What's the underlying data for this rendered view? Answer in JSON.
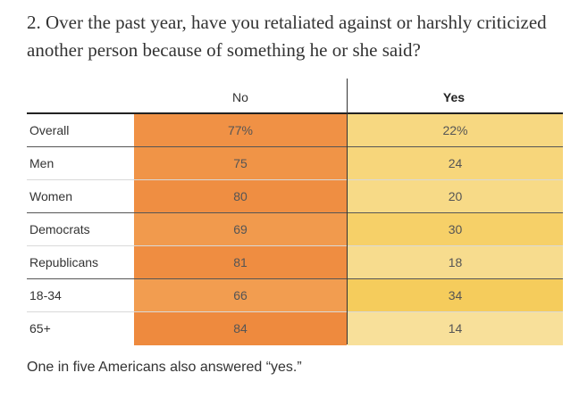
{
  "title": "2. Over the past year, have you retaliated against or harshly criticized another person because of something he or she said?",
  "note": "One in five Americans also answered “yes.”",
  "colors": {
    "no_scale": [
      "#f29d50",
      "#ee8a3e"
    ],
    "yes_scale": [
      "#f8e09a",
      "#f5cc5c"
    ]
  },
  "chart_data": {
    "type": "table",
    "title": "2. Over the past year, have you retaliated against or harshly criticized another person because of something he or she said?",
    "columns": [
      "No",
      "Yes"
    ],
    "rows": [
      {
        "label": "Overall",
        "no": "77%",
        "yes": "22%",
        "no_value": 77,
        "yes_value": 22
      },
      {
        "label": "Men",
        "no": "75",
        "yes": "24",
        "no_value": 75,
        "yes_value": 24
      },
      {
        "label": "Women",
        "no": "80",
        "yes": "20",
        "no_value": 80,
        "yes_value": 20
      },
      {
        "label": "Democrats",
        "no": "69",
        "yes": "30",
        "no_value": 69,
        "yes_value": 30
      },
      {
        "label": "Republicans",
        "no": "81",
        "yes": "18",
        "no_value": 81,
        "yes_value": 18
      },
      {
        "label": "18-34",
        "no": "66",
        "yes": "34",
        "no_value": 66,
        "yes_value": 34
      },
      {
        "label": "65+",
        "no": "84",
        "yes": "14",
        "no_value": 84,
        "yes_value": 14
      }
    ]
  }
}
